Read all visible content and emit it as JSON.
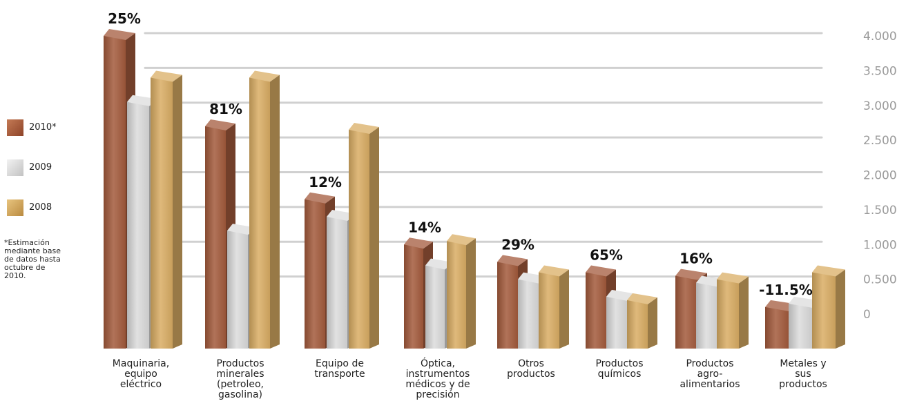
{
  "legend": [
    {
      "label": "2010*",
      "color": "#a35a3c"
    },
    {
      "label": "2009",
      "color": "#dcdcdc"
    },
    {
      "label": "2008",
      "color": "#d9ad64"
    }
  ],
  "footnote": "*Estimación mediante base de datos hasta octubre de 2010.",
  "chart_data": {
    "type": "bar",
    "categories": [
      "Maquinaria, equipo eléctrico",
      "Productos minerales (petroleo, gasolina)",
      "Equipo de transporte",
      "Óptica, instrumentos médicos y de precisión",
      "Otros productos",
      "Productos químicos",
      "Productos agro-alimentarios",
      "Metales y sus productos"
    ],
    "category_lines": [
      [
        "Maquinaria,",
        "equipo",
        "eléctrico"
      ],
      [
        "Productos",
        "minerales",
        "(petroleo,",
        "gasolina)"
      ],
      [
        "Equipo de",
        "transporte"
      ],
      [
        "Óptica,",
        "instrumentos",
        "médicos y de",
        "precisión"
      ],
      [
        "Otros",
        "productos"
      ],
      [
        "Productos",
        "químicos"
      ],
      [
        "Productos",
        "agro-",
        "alimentarios"
      ],
      [
        "Metales y",
        "sus",
        "productos"
      ]
    ],
    "series": [
      {
        "name": "2010*",
        "values": [
          4000,
          2700,
          1650,
          1000,
          750,
          600,
          550,
          100
        ],
        "color": "#a35a3c"
      },
      {
        "name": "2009",
        "values": [
          3050,
          1200,
          1400,
          700,
          500,
          250,
          450,
          150
        ],
        "color": "#dcdcdc"
      },
      {
        "name": "2008",
        "values": [
          3400,
          3400,
          2650,
          1050,
          600,
          200,
          500,
          600
        ],
        "color": "#d9ad64"
      }
    ],
    "growth_labels": [
      "25%",
      "81%",
      "12%",
      "14%",
      "29%",
      "65%",
      "16%",
      "-11.5%"
    ],
    "ytick_labels": [
      "0",
      "0.500",
      "1.000",
      "1.500",
      "2.000",
      "2.500",
      "3.000",
      "3.500",
      "4.000"
    ],
    "yticks": [
      0,
      500,
      1000,
      1500,
      2000,
      2500,
      3000,
      3500,
      4000
    ],
    "ylim": [
      0,
      4000
    ],
    "grid": true,
    "legend_position": "left"
  }
}
